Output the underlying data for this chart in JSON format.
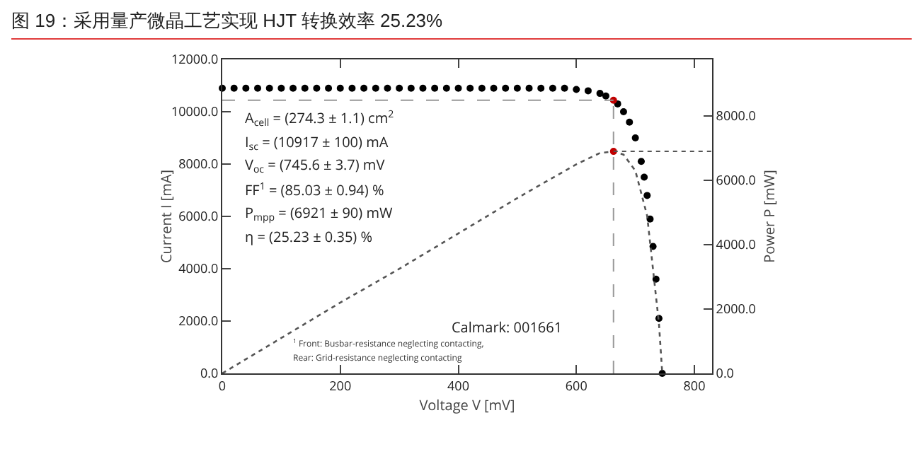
{
  "chart_data": {
    "type": "scatter",
    "title": "图 19：采用量产微晶工艺实现 HJT 转换效率 25.23%",
    "xlabel": "Voltage V [mV]",
    "ylabel": "Current I [mA]",
    "y2label": "Power P [mW]",
    "xlim": [
      0,
      830
    ],
    "xticks": [
      0,
      200,
      400,
      600,
      800
    ],
    "ylim": [
      0,
      12000
    ],
    "yticks": [
      {
        "value": 0,
        "label": "0.0"
      },
      {
        "value": 2000,
        "label": "2000.0"
      },
      {
        "value": 4000,
        "label": "4000.0"
      },
      {
        "value": 6000,
        "label": "6000.0"
      },
      {
        "value": 8000,
        "label": "8000.0"
      },
      {
        "value": 10000,
        "label": "10000.0"
      },
      {
        "value": 12000,
        "label": "12000.0"
      }
    ],
    "y2lim": [
      0,
      9760
    ],
    "y2ticks": [
      {
        "value": 0,
        "label": "0.0"
      },
      {
        "value": 2000,
        "label": "2000.0"
      },
      {
        "value": 4000,
        "label": "4000.0"
      },
      {
        "value": 6000,
        "label": "6000.0"
      },
      {
        "value": 8000,
        "label": "8000.0"
      }
    ],
    "series": [
      {
        "type": "scatter",
        "color": "#000000",
        "marker": "circle",
        "x": [
          0,
          20,
          40,
          60,
          80,
          100,
          120,
          140,
          160,
          180,
          200,
          220,
          240,
          260,
          280,
          300,
          320,
          340,
          360,
          380,
          400,
          420,
          440,
          460,
          480,
          500,
          520,
          540,
          560,
          580,
          600,
          620,
          640,
          650,
          670,
          680,
          690,
          700,
          710,
          715,
          720,
          725,
          730,
          735,
          740,
          745.6
        ],
        "values": [
          10900,
          10900,
          10900,
          10900,
          10900,
          10900,
          10900,
          10900,
          10900,
          10900,
          10900,
          10900,
          10900,
          10900,
          10900,
          10900,
          10900,
          10900,
          10900,
          10900,
          10900,
          10900,
          10900,
          10900,
          10900,
          10900,
          10900,
          10900,
          10900,
          10900,
          10850,
          10800,
          10700,
          10600,
          10300,
          10000,
          9600,
          9000,
          8100,
          7500,
          6800,
          5900,
          4850,
          3600,
          2100,
          0
        ]
      },
      {
        "type": "line",
        "axis": "y2",
        "color": "#555555",
        "marker": "none",
        "line_style": "dotted",
        "x": [
          0,
          100,
          200,
          300,
          400,
          500,
          600,
          640,
          663,
          680,
          700,
          720,
          740,
          745.6
        ],
        "values": [
          0,
          1100,
          2200,
          3250,
          4350,
          5450,
          6500,
          6850,
          6900,
          6800,
          6300,
          4900,
          1550,
          0
        ]
      },
      {
        "type": "scatter",
        "color": "#c00000",
        "marker": "circle",
        "x": [
          663
        ],
        "values": [
          10440
        ]
      },
      {
        "type": "scatter",
        "axis": "y2",
        "color": "#c00000",
        "marker": "circle",
        "x": [
          663
        ],
        "values": [
          6900
        ]
      }
    ],
    "ref_lines": [
      {
        "axis": "y",
        "value": 10440,
        "color": "#999999",
        "line_style": "dashed"
      },
      {
        "axis": "x",
        "value": 663,
        "color": "#999999",
        "line_style": "dashed"
      },
      {
        "axis": "y2",
        "value": 6900,
        "color": "#555555",
        "line_style": "dotted"
      }
    ],
    "annotations": [
      "A$_{cell}$ = (274.3 ± 1.1) cm$^{2}$",
      "I$_{sc}$ = (10917 ± 100) mA",
      "V$_{oc}$ = (745.6 ± 3.7) mV",
      "FF$^{1}$ = (85.03 ± 0.94) %",
      "P$_{mpp}$ = (6921 ± 90) mW",
      "η = (25.23 ± 0.35) %",
      "Calmark: 001661",
      "$^{1}$ Front: Busbar-resistance neglecting contacting,",
      "Rear: Grid-resistance neglecting contacting"
    ],
    "grid": false
  }
}
